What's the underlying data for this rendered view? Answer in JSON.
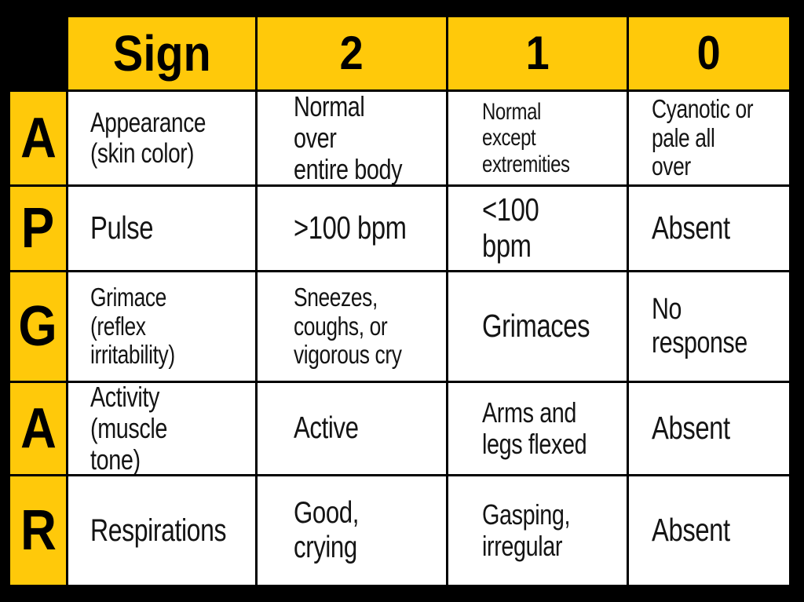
{
  "chart_data": {
    "type": "table",
    "columns": [
      "Sign",
      "2",
      "1",
      "0"
    ],
    "rows": [
      {
        "letter": "A",
        "sign": "Appearance\n(skin color)",
        "score_2": "Normal over\nentire body",
        "score_1": "Normal\nexcept\nextremities",
        "score_0": "Cyanotic or\npale all over"
      },
      {
        "letter": "P",
        "sign": "Pulse",
        "score_2": ">100 bpm",
        "score_1": "<100 bpm",
        "score_0": "Absent"
      },
      {
        "letter": "G",
        "sign": "Grimace\n(reflex\nirritability)",
        "score_2": "Sneezes,\ncoughs, or\nvigorous cry",
        "score_1": "Grimaces",
        "score_0": "No response"
      },
      {
        "letter": "A",
        "sign": "Activity\n(muscle tone)",
        "score_2": "Active",
        "score_1": "Arms and\nlegs flexed",
        "score_0": "Absent"
      },
      {
        "letter": "R",
        "sign": "Respirations",
        "score_2": "Good, crying",
        "score_1": "Gasping,\nirregular",
        "score_0": "Absent"
      }
    ],
    "layout_hints": {
      "acronym": "APGAR",
      "header_fill": "yellow",
      "letter_column_fill": "yellow",
      "data_cell_fill": "white",
      "gridlines": "black"
    }
  },
  "colors": {
    "accent_yellow": "#FFC90A",
    "cell_white": "#FFFFFF",
    "canvas_black": "#000000",
    "text_black": "#141414"
  }
}
